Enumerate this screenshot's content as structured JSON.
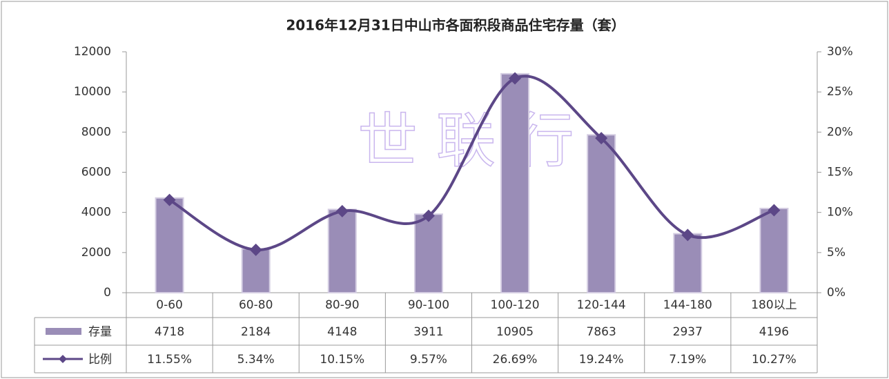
{
  "chart_data": {
    "type": "bar_line",
    "title": "2016年12月31日中山市各面积段商品住宅存量（套）",
    "watermark": "世 联 行",
    "categories": [
      "0-60",
      "60-80",
      "80-90",
      "90-100",
      "100-120",
      "120-144",
      "144-180",
      "180以上"
    ],
    "series": [
      {
        "name": "存量",
        "color": "#9a8db7",
        "values": [
          4718,
          2184,
          4148,
          3911,
          10905,
          7863,
          2937,
          4196
        ]
      },
      {
        "name": "比例",
        "color": "#5c4787",
        "axis": "y2",
        "values": [
          11.55,
          5.34,
          10.15,
          9.57,
          26.69,
          19.24,
          7.19,
          10.27
        ],
        "value_labels": [
          "11.55%",
          "5.34%",
          "10.15%",
          "9.57%",
          "26.69%",
          "19.24%",
          "7.19%",
          "10.27%"
        ]
      }
    ],
    "ylim": [
      0,
      12000
    ],
    "yticks": [
      0,
      2000,
      4000,
      6000,
      8000,
      10000,
      12000
    ],
    "y2lim": [
      0,
      30
    ],
    "y2ticks": [
      {
        "value": 0,
        "label": "0%"
      },
      {
        "value": 5,
        "label": "5%"
      },
      {
        "value": 10,
        "label": "10%"
      },
      {
        "value": 15,
        "label": "15%"
      },
      {
        "value": 20,
        "label": "20%"
      },
      {
        "value": 25,
        "label": "25%"
      },
      {
        "value": 30,
        "label": "30%"
      }
    ]
  }
}
